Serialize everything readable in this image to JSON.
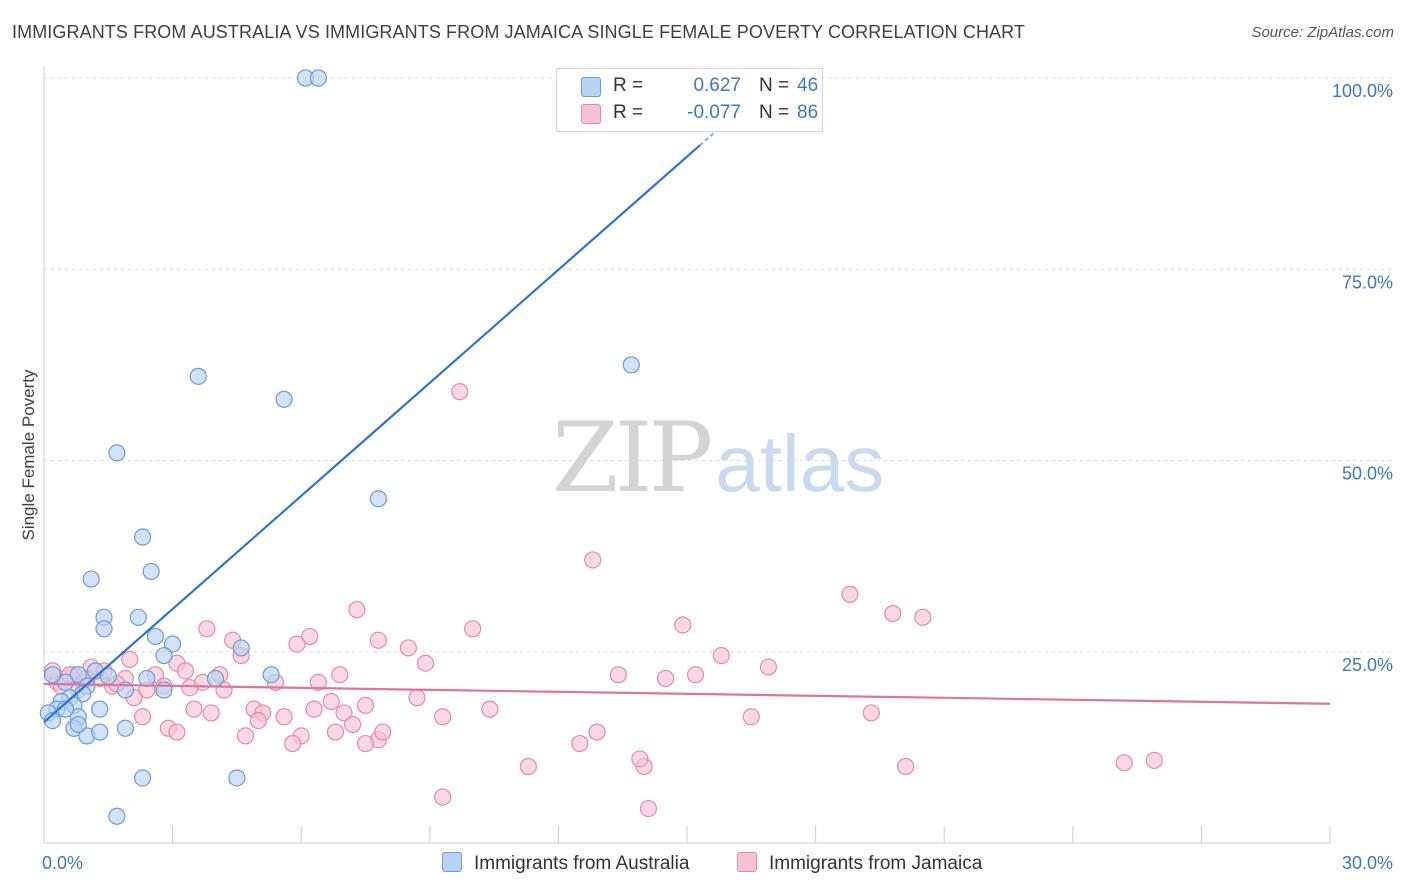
{
  "title": "IMMIGRANTS FROM AUSTRALIA VS IMMIGRANTS FROM JAMAICA SINGLE FEMALE POVERTY CORRELATION CHART",
  "source": "Source: ZipAtlas.com",
  "watermark": {
    "zip": "ZIP",
    "atlas": "atlas"
  },
  "legend": {
    "australia": {
      "r_label": "R =",
      "r_value": "0.627",
      "n_label": "N =",
      "n_value": "46"
    },
    "jamaica": {
      "r_label": "R =",
      "r_value": "-0.077",
      "n_label": "N =",
      "n_value": "86"
    }
  },
  "colors": {
    "australia_fill": "#b8d3f3",
    "australia_stroke": "#6b9bd6",
    "australia_line": "#2f74d0",
    "jamaica_fill": "#f7c3d4",
    "jamaica_stroke": "#e58aaa",
    "jamaica_line": "#e0739a",
    "axis_text": "#3b78c3",
    "grid": "#d8d8d8"
  },
  "chart_data": {
    "type": "scatter",
    "title": "IMMIGRANTS FROM AUSTRALIA VS IMMIGRANTS FROM JAMAICA SINGLE FEMALE POVERTY CORRELATION CHART",
    "xlabel": "",
    "ylabel": "Single Female Poverty",
    "xlim": [
      0,
      30
    ],
    "ylim": [
      0,
      100
    ],
    "x_tick_labels": [
      "0.0%",
      "30.0%"
    ],
    "y_tick_labels": [
      "100.0%",
      "75.0%",
      "50.0%",
      "25.0%"
    ],
    "y_ticks": [
      100,
      75,
      50,
      25
    ],
    "grid": true,
    "legend_position": "bottom",
    "series": [
      {
        "name": "Immigrants from Australia",
        "color": "#6b9bd6",
        "trend": {
          "x": [
            0,
            15.3
          ],
          "y": [
            15.8,
            91.2
          ]
        },
        "points": [
          [
            6.1,
            100
          ],
          [
            6.4,
            100
          ],
          [
            3.6,
            61
          ],
          [
            5.6,
            58
          ],
          [
            13.7,
            62.5
          ],
          [
            1.7,
            51
          ],
          [
            7.8,
            45
          ],
          [
            2.3,
            40
          ],
          [
            2.5,
            35.5
          ],
          [
            1.1,
            34.5
          ],
          [
            1.4,
            29.5
          ],
          [
            2.2,
            29.5
          ],
          [
            1.4,
            28
          ],
          [
            2.6,
            27
          ],
          [
            3.0,
            26
          ],
          [
            4.6,
            25.5
          ],
          [
            2.8,
            24.5
          ],
          [
            5.3,
            22
          ],
          [
            1.2,
            22.5
          ],
          [
            1.5,
            21.8
          ],
          [
            0.8,
            22
          ],
          [
            4.0,
            21.5
          ],
          [
            2.4,
            21.5
          ],
          [
            1.0,
            20.5
          ],
          [
            0.5,
            21
          ],
          [
            0.2,
            22
          ],
          [
            2.8,
            20
          ],
          [
            1.9,
            20
          ],
          [
            0.9,
            19.5
          ],
          [
            0.6,
            19
          ],
          [
            0.4,
            18.5
          ],
          [
            0.7,
            18
          ],
          [
            1.3,
            17.5
          ],
          [
            0.3,
            17.5
          ],
          [
            0.1,
            17
          ],
          [
            0.8,
            16.5
          ],
          [
            0.2,
            16
          ],
          [
            1.9,
            15
          ],
          [
            0.7,
            15
          ],
          [
            1.0,
            14
          ],
          [
            0.8,
            15.5
          ],
          [
            0.5,
            17.5
          ],
          [
            1.3,
            14.5
          ],
          [
            2.3,
            8.5
          ],
          [
            4.5,
            8.5
          ],
          [
            1.7,
            3.5
          ]
        ]
      },
      {
        "name": "Immigrants from Jamaica",
        "color": "#e58aaa",
        "trend": {
          "x": [
            0,
            30
          ],
          "y": [
            20.8,
            18.2
          ]
        },
        "points": [
          [
            9.7,
            59
          ],
          [
            12.8,
            37
          ],
          [
            18.8,
            32.5
          ],
          [
            20.5,
            29.5
          ],
          [
            19.8,
            30
          ],
          [
            7.3,
            30.5
          ],
          [
            14.9,
            28.5
          ],
          [
            10.0,
            28
          ],
          [
            3.8,
            28
          ],
          [
            6.2,
            27
          ],
          [
            7.8,
            26.5
          ],
          [
            5.9,
            26
          ],
          [
            4.4,
            26.5
          ],
          [
            8.5,
            25.5
          ],
          [
            4.6,
            24.5
          ],
          [
            15.8,
            24.5
          ],
          [
            8.9,
            23.5
          ],
          [
            2.0,
            24
          ],
          [
            3.1,
            23.5
          ],
          [
            3.3,
            22.5
          ],
          [
            16.9,
            23
          ],
          [
            15.2,
            22
          ],
          [
            14.5,
            21.5
          ],
          [
            13.4,
            22
          ],
          [
            2.6,
            22
          ],
          [
            4.1,
            22
          ],
          [
            6.9,
            22
          ],
          [
            5.4,
            21
          ],
          [
            1.9,
            21.5
          ],
          [
            0.5,
            21.5
          ],
          [
            1.3,
            21.5
          ],
          [
            0.9,
            21
          ],
          [
            1.6,
            20.5
          ],
          [
            0.3,
            21
          ],
          [
            0.2,
            22.5
          ],
          [
            0.7,
            22
          ],
          [
            1.1,
            23
          ],
          [
            0.8,
            20
          ],
          [
            1.7,
            20.8
          ],
          [
            2.4,
            20
          ],
          [
            3.4,
            20.3
          ],
          [
            4.2,
            20
          ],
          [
            2.1,
            19
          ],
          [
            6.7,
            18.5
          ],
          [
            7.5,
            18
          ],
          [
            8.7,
            19
          ],
          [
            10.4,
            17.5
          ],
          [
            9.3,
            16.5
          ],
          [
            16.5,
            16.5
          ],
          [
            19.3,
            17
          ],
          [
            3.5,
            17.5
          ],
          [
            3.9,
            17
          ],
          [
            4.9,
            17.5
          ],
          [
            5.1,
            17
          ],
          [
            6.3,
            17.5
          ],
          [
            7.0,
            17
          ],
          [
            2.3,
            16.5
          ],
          [
            5.6,
            16.5
          ],
          [
            5.0,
            16
          ],
          [
            7.2,
            15.5
          ],
          [
            2.9,
            15
          ],
          [
            3.1,
            14.5
          ],
          [
            4.7,
            14
          ],
          [
            6.0,
            14
          ],
          [
            7.8,
            13.5
          ],
          [
            5.8,
            13
          ],
          [
            6.8,
            14.5
          ],
          [
            7.5,
            13
          ],
          [
            12.5,
            13
          ],
          [
            12.9,
            14.5
          ],
          [
            14.0,
            10
          ],
          [
            20.1,
            10
          ],
          [
            11.3,
            10
          ],
          [
            25.2,
            10.5
          ],
          [
            25.9,
            10.8
          ],
          [
            9.3,
            6
          ],
          [
            14.1,
            4.5
          ],
          [
            0.4,
            20.5
          ],
          [
            1.0,
            21.5
          ],
          [
            1.4,
            22.5
          ],
          [
            0.6,
            22
          ],
          [
            2.8,
            20.5
          ],
          [
            3.7,
            21
          ],
          [
            6.4,
            21
          ],
          [
            13.9,
            11
          ],
          [
            7.9,
            14.5
          ]
        ]
      }
    ]
  },
  "bottom_legend": [
    "Immigrants from Australia",
    "Immigrants from Jamaica"
  ]
}
